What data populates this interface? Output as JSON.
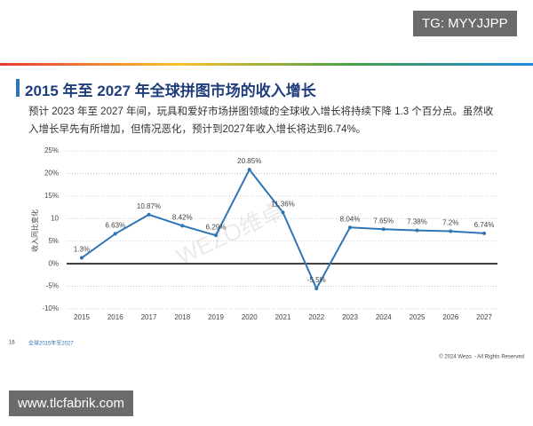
{
  "header": {
    "title": "2015 年至 2027 年全球拼图市场的收入增长",
    "text": "预计 2023 年至 2027 年间，玩具和爱好市场拼图领域的全球收入增长将持续下降 1.3 个百分点。虽然收入增长早先有所增加，但情况恶化，预计到2027年收入增长将达到6.74%。"
  },
  "badges": {
    "top": "TG: MYYJJPP",
    "bottom": "www.tlcfabrik.com"
  },
  "footer": {
    "page": "16",
    "note": "全球2015年至2027",
    "copyright": "© 2024 Wezo. - All Rights Reserved"
  },
  "watermark": "WEZO维卓",
  "chart_data": {
    "type": "line",
    "y_label": "收入同比变化",
    "categories": [
      "2015",
      "2016",
      "2017",
      "2018",
      "2019",
      "2020",
      "2021",
      "2022",
      "2023",
      "2024",
      "2025",
      "2026",
      "2027"
    ],
    "series": [
      {
        "name": "收入同比变化",
        "color": "#2e75b6",
        "values": [
          1.3,
          6.63,
          10.87,
          8.42,
          6.29,
          20.85,
          11.36,
          -5.5,
          8.04,
          7.65,
          7.38,
          7.2,
          6.74
        ],
        "value_labels": [
          "1.3%",
          "6.63%",
          "10.87%",
          "8.42%",
          "6.29%",
          "20.85%",
          "11.36%",
          "-5.5%",
          "8.04%",
          "7.65%",
          "7.38%",
          "7.2%",
          "6.74%"
        ]
      }
    ],
    "ylim": [
      -10,
      25
    ],
    "yticks": [
      {
        "value": 25,
        "label": "25%"
      },
      {
        "value": 20,
        "label": "20%"
      },
      {
        "value": 15,
        "label": "15%"
      },
      10,
      {
        "value": 5,
        "label": "5%"
      },
      {
        "value": 0,
        "label": "0%"
      },
      {
        "value": -5,
        "label": "-5%"
      },
      {
        "value": -10,
        "label": "-10%"
      }
    ],
    "grid": true
  }
}
